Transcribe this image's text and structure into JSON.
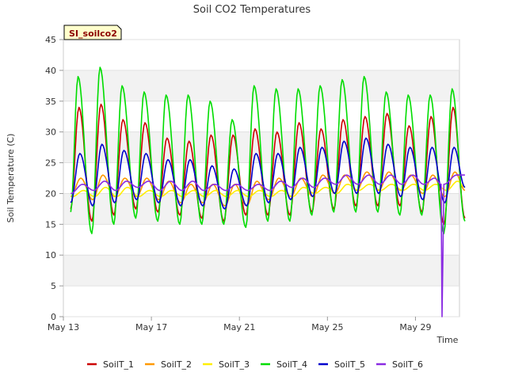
{
  "chart_data": {
    "type": "line",
    "title": "Soil CO2 Temperatures",
    "xlabel": "Time",
    "ylabel": "Soil Temperature (C)",
    "site_label": "SI_soilco2",
    "xlim": [
      "2023-05-13",
      "2023-05-31"
    ],
    "x_ticks": [
      {
        "date": "2023-05-13",
        "label": "May 13"
      },
      {
        "date": "2023-05-17",
        "label": "May 17"
      },
      {
        "date": "2023-05-21",
        "label": "May 21"
      },
      {
        "date": "2023-05-25",
        "label": "May 25"
      },
      {
        "date": "2023-05-29",
        "label": "May 29"
      }
    ],
    "ylim": [
      0,
      45
    ],
    "y_ticks": [
      "0",
      "5",
      "10",
      "15",
      "20",
      "25",
      "30",
      "35",
      "40",
      "45"
    ],
    "grid": "horizontal alternating bands",
    "legend_position": "bottom",
    "series": [
      {
        "name": "SoilT_1",
        "color": "#cc0000",
        "x": [
          "2023-05-13T08:00",
          "2023-05-13T17:00",
          "2023-05-14T07:00",
          "2023-05-14T17:00",
          "2023-05-15T07:00",
          "2023-05-15T17:00",
          "2023-05-16T07:00",
          "2023-05-16T17:00",
          "2023-05-17T07:00",
          "2023-05-17T17:00",
          "2023-05-18T07:00",
          "2023-05-18T17:00",
          "2023-05-19T07:00",
          "2023-05-19T17:00",
          "2023-05-20T07:00",
          "2023-05-20T17:00",
          "2023-05-21T07:00",
          "2023-05-21T17:00",
          "2023-05-22T07:00",
          "2023-05-22T17:00",
          "2023-05-23T07:00",
          "2023-05-23T17:00",
          "2023-05-24T07:00",
          "2023-05-24T17:00",
          "2023-05-25T07:00",
          "2023-05-25T17:00",
          "2023-05-26T07:00",
          "2023-05-26T17:00",
          "2023-05-27T07:00",
          "2023-05-27T17:00",
          "2023-05-28T07:00",
          "2023-05-28T17:00",
          "2023-05-29T07:00",
          "2023-05-29T17:00",
          "2023-05-30T07:00",
          "2023-05-30T17:00",
          "2023-05-31T06:00"
        ],
        "y": [
          17.5,
          34,
          15.5,
          34.5,
          16.5,
          32,
          17.5,
          31.5,
          17,
          29,
          16.5,
          28.5,
          16,
          29.5,
          15.5,
          29.5,
          16.5,
          30.5,
          16.5,
          30,
          16.5,
          31.5,
          17,
          30.5,
          17.5,
          32,
          18,
          32.5,
          18,
          33,
          18,
          31,
          17,
          32.5,
          15,
          34,
          16
        ]
      },
      {
        "name": "SoilT_2",
        "color": "#ff9900",
        "x": [
          "2023-05-13T08:00",
          "2023-05-13T19:00",
          "2023-05-14T08:00",
          "2023-05-14T19:00",
          "2023-05-15T08:00",
          "2023-05-15T19:00",
          "2023-05-16T08:00",
          "2023-05-16T19:00",
          "2023-05-17T08:00",
          "2023-05-17T19:00",
          "2023-05-18T08:00",
          "2023-05-18T19:00",
          "2023-05-19T08:00",
          "2023-05-19T19:00",
          "2023-05-20T08:00",
          "2023-05-20T19:00",
          "2023-05-21T08:00",
          "2023-05-21T19:00",
          "2023-05-22T08:00",
          "2023-05-22T19:00",
          "2023-05-23T08:00",
          "2023-05-23T19:00",
          "2023-05-24T08:00",
          "2023-05-24T19:00",
          "2023-05-25T08:00",
          "2023-05-25T19:00",
          "2023-05-26T08:00",
          "2023-05-26T19:00",
          "2023-05-27T08:00",
          "2023-05-27T19:00",
          "2023-05-28T08:00",
          "2023-05-28T19:00",
          "2023-05-29T08:00",
          "2023-05-29T19:00",
          "2023-05-30T08:00",
          "2023-05-30T19:00",
          "2023-05-31T06:00"
        ],
        "y": [
          19.5,
          22.5,
          19,
          23,
          19.5,
          22.5,
          19.5,
          22.5,
          19,
          22,
          18.5,
          21.5,
          18.5,
          21.5,
          18,
          21.5,
          18,
          22,
          19,
          22.5,
          19.5,
          22.5,
          19.5,
          23,
          20,
          23,
          20.5,
          23.5,
          20.5,
          23.5,
          20.5,
          23,
          20,
          23,
          19.5,
          23.5,
          20.5
        ]
      },
      {
        "name": "SoilT_3",
        "color": "#ffee00",
        "x": [
          "2023-05-13T10:00",
          "2023-05-13T22:00",
          "2023-05-14T10:00",
          "2023-05-14T22:00",
          "2023-05-15T10:00",
          "2023-05-15T22:00",
          "2023-05-16T10:00",
          "2023-05-16T22:00",
          "2023-05-17T10:00",
          "2023-05-17T22:00",
          "2023-05-18T10:00",
          "2023-05-18T22:00",
          "2023-05-19T10:00",
          "2023-05-19T22:00",
          "2023-05-20T10:00",
          "2023-05-20T22:00",
          "2023-05-21T10:00",
          "2023-05-21T22:00",
          "2023-05-22T10:00",
          "2023-05-22T22:00",
          "2023-05-23T10:00",
          "2023-05-23T22:00",
          "2023-05-24T10:00",
          "2023-05-24T22:00",
          "2023-05-25T10:00",
          "2023-05-25T22:00",
          "2023-05-26T10:00",
          "2023-05-26T22:00",
          "2023-05-27T10:00",
          "2023-05-27T22:00",
          "2023-05-28T10:00",
          "2023-05-28T22:00",
          "2023-05-29T10:00",
          "2023-05-29T22:00",
          "2023-05-30T10:00",
          "2023-05-30T22:00",
          "2023-05-31T06:00"
        ],
        "y": [
          19.5,
          20.5,
          19.5,
          21,
          19.5,
          21,
          19.5,
          20.5,
          19.5,
          20.5,
          19.5,
          20.5,
          19.5,
          20.5,
          19.5,
          20.5,
          19.5,
          20.5,
          19.5,
          20.5,
          19.5,
          21,
          20,
          21,
          20,
          21.5,
          20.5,
          21.5,
          20.5,
          21.5,
          20.5,
          21.5,
          20.5,
          21.5,
          20.5,
          22,
          21
        ]
      },
      {
        "name": "SoilT_4",
        "color": "#00dd00",
        "x": [
          "2023-05-13T08:00",
          "2023-05-13T16:00",
          "2023-05-14T07:00",
          "2023-05-14T16:00",
          "2023-05-15T07:00",
          "2023-05-15T16:00",
          "2023-05-16T07:00",
          "2023-05-16T16:00",
          "2023-05-17T07:00",
          "2023-05-17T16:00",
          "2023-05-18T07:00",
          "2023-05-18T16:00",
          "2023-05-19T07:00",
          "2023-05-19T16:00",
          "2023-05-20T07:00",
          "2023-05-20T16:00",
          "2023-05-21T07:00",
          "2023-05-21T16:00",
          "2023-05-22T07:00",
          "2023-05-22T16:00",
          "2023-05-23T07:00",
          "2023-05-23T16:00",
          "2023-05-24T07:00",
          "2023-05-24T16:00",
          "2023-05-25T07:00",
          "2023-05-25T16:00",
          "2023-05-26T07:00",
          "2023-05-26T16:00",
          "2023-05-27T07:00",
          "2023-05-27T16:00",
          "2023-05-28T07:00",
          "2023-05-28T16:00",
          "2023-05-29T07:00",
          "2023-05-29T16:00",
          "2023-05-30T07:00",
          "2023-05-30T16:00",
          "2023-05-31T06:00"
        ],
        "y": [
          17,
          39,
          13.5,
          40.5,
          15,
          37.5,
          16,
          36.5,
          15.5,
          36,
          15,
          36,
          15,
          35,
          15,
          32,
          14.5,
          37.5,
          15.5,
          37,
          15.5,
          37,
          16.5,
          37.5,
          17,
          38.5,
          17,
          39,
          17,
          36.5,
          16.5,
          36,
          16.5,
          36,
          13.5,
          37,
          15.5
        ]
      },
      {
        "name": "SoilT_5",
        "color": "#0000cc",
        "x": [
          "2023-05-13T08:00",
          "2023-05-13T18:00",
          "2023-05-14T08:00",
          "2023-05-14T18:00",
          "2023-05-15T08:00",
          "2023-05-15T18:00",
          "2023-05-16T08:00",
          "2023-05-16T18:00",
          "2023-05-17T08:00",
          "2023-05-17T18:00",
          "2023-05-18T08:00",
          "2023-05-18T18:00",
          "2023-05-19T08:00",
          "2023-05-19T18:00",
          "2023-05-20T08:00",
          "2023-05-20T18:00",
          "2023-05-21T08:00",
          "2023-05-21T18:00",
          "2023-05-22T08:00",
          "2023-05-22T18:00",
          "2023-05-23T08:00",
          "2023-05-23T18:00",
          "2023-05-24T08:00",
          "2023-05-24T18:00",
          "2023-05-25T08:00",
          "2023-05-25T18:00",
          "2023-05-26T08:00",
          "2023-05-26T18:00",
          "2023-05-27T08:00",
          "2023-05-27T18:00",
          "2023-05-28T08:00",
          "2023-05-28T18:00",
          "2023-05-29T08:00",
          "2023-05-29T18:00",
          "2023-05-30T08:00",
          "2023-05-30T18:00",
          "2023-05-31T06:00"
        ],
        "y": [
          18.5,
          26.5,
          18,
          28,
          18.5,
          27,
          19,
          26.5,
          18.5,
          25.5,
          18,
          25.5,
          18,
          24.5,
          17.5,
          24,
          18,
          26.5,
          18.5,
          26.5,
          19,
          27.5,
          19.5,
          27.5,
          20,
          28.5,
          20,
          29,
          20,
          28,
          19.5,
          27.5,
          19,
          27.5,
          18.5,
          27.5,
          21
        ]
      },
      {
        "name": "SoilT_6",
        "color": "#8a2be2",
        "x": [
          "2023-05-13T08:00",
          "2023-05-13T21:00",
          "2023-05-14T09:00",
          "2023-05-14T21:00",
          "2023-05-15T09:00",
          "2023-05-15T21:00",
          "2023-05-16T09:00",
          "2023-05-16T21:00",
          "2023-05-17T09:00",
          "2023-05-17T21:00",
          "2023-05-18T09:00",
          "2023-05-18T21:00",
          "2023-05-19T09:00",
          "2023-05-19T21:00",
          "2023-05-20T09:00",
          "2023-05-20T21:00",
          "2023-05-21T09:00",
          "2023-05-21T21:00",
          "2023-05-22T09:00",
          "2023-05-22T21:00",
          "2023-05-23T09:00",
          "2023-05-23T21:00",
          "2023-05-24T09:00",
          "2023-05-24T21:00",
          "2023-05-25T09:00",
          "2023-05-25T21:00",
          "2023-05-26T09:00",
          "2023-05-26T21:00",
          "2023-05-27T09:00",
          "2023-05-27T21:00",
          "2023-05-28T09:00",
          "2023-05-28T21:00",
          "2023-05-29T09:00",
          "2023-05-29T21:00",
          "2023-05-30T04:00",
          "2023-05-30T05:00",
          "2023-05-30T07:00",
          "2023-05-30T21:00",
          "2023-05-31T06:00"
        ],
        "y": [
          20,
          21.5,
          20.5,
          22,
          20.5,
          22,
          21,
          22,
          20.5,
          22,
          20.5,
          22,
          20.5,
          21.5,
          20.5,
          21.5,
          20.5,
          21.5,
          20.5,
          22,
          21,
          22.5,
          21,
          22.5,
          21.5,
          23,
          21.5,
          23,
          21.5,
          23,
          21.5,
          23,
          21.5,
          22.5,
          21.5,
          0,
          21.5,
          23,
          23
        ]
      }
    ]
  }
}
